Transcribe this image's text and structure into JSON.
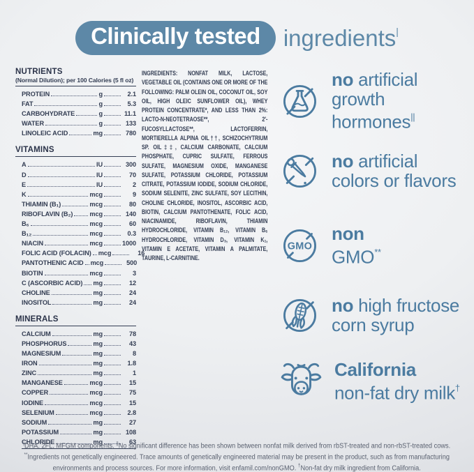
{
  "header": {
    "pill_text": "Clinically tested",
    "suffix_text": "ingredients",
    "suffix_sup": "|"
  },
  "nutrients": {
    "title": "NUTRIENTS",
    "subtitle": "(Normal Dilution); per 100 Calories (5 fl oz)",
    "rows": [
      {
        "label": "PROTEIN",
        "unit": "g",
        "value": "2.1"
      },
      {
        "label": "FAT",
        "unit": "g",
        "value": "5.3"
      },
      {
        "label": "CARBOHYDRATE",
        "unit": "g",
        "value": "11.1"
      },
      {
        "label": "WATER",
        "unit": "g",
        "value": "133"
      },
      {
        "label": "LINOLEIC ACID",
        "unit": "mg",
        "value": "780"
      }
    ]
  },
  "vitamins": {
    "title": "VITAMINS",
    "rows": [
      {
        "label": "A",
        "unit": "IU",
        "value": "300"
      },
      {
        "label": "D",
        "unit": "IU",
        "value": "70"
      },
      {
        "label": "E",
        "unit": "IU",
        "value": "2"
      },
      {
        "label": "K",
        "unit": "mcg",
        "value": "9"
      },
      {
        "label": "THIAMIN (B₁)",
        "unit": "mcg",
        "value": "80"
      },
      {
        "label": "RIBOFLAVIN (B₂)",
        "unit": "mcg",
        "value": "140"
      },
      {
        "label": "B₆",
        "unit": "mcg",
        "value": "60"
      },
      {
        "label": "B₁₂",
        "unit": "mcg",
        "value": "0.3"
      },
      {
        "label": "NIACIN",
        "unit": "mcg",
        "value": "1000"
      },
      {
        "label": "FOLIC ACID (FOLACIN)",
        "unit": "mcg",
        "value": "16"
      },
      {
        "label": "PANTOTHENIC ACID",
        "unit": "mcg",
        "value": "500"
      },
      {
        "label": "BIOTIN",
        "unit": "mcg",
        "value": "3"
      },
      {
        "label": "C (ASCORBIC ACID)",
        "unit": "mg",
        "value": "12"
      },
      {
        "label": "CHOLINE",
        "unit": "mg",
        "value": "24"
      },
      {
        "label": "INOSITOL",
        "unit": "mg",
        "value": "24"
      }
    ]
  },
  "minerals": {
    "title": "MINERALS",
    "rows": [
      {
        "label": "CALCIUM",
        "unit": "mg",
        "value": "78"
      },
      {
        "label": "PHOSPHORUS",
        "unit": "mg",
        "value": "43"
      },
      {
        "label": "MAGNESIUM",
        "unit": "mg",
        "value": "8"
      },
      {
        "label": "IRON",
        "unit": "mg",
        "value": "1.8"
      },
      {
        "label": "ZINC",
        "unit": "mg",
        "value": "1"
      },
      {
        "label": "MANGANESE",
        "unit": "mcg",
        "value": "15"
      },
      {
        "label": "COPPER",
        "unit": "mcg",
        "value": "75"
      },
      {
        "label": "IODINE",
        "unit": "mcg",
        "value": "15"
      },
      {
        "label": "SELENIUM",
        "unit": "mcg",
        "value": "2.8"
      },
      {
        "label": "SODIUM",
        "unit": "mg",
        "value": "27"
      },
      {
        "label": "POTASSIUM",
        "unit": "mg",
        "value": "108"
      },
      {
        "label": "CHLORIDE",
        "unit": "mg",
        "value": "63"
      }
    ]
  },
  "ingredients": {
    "label": "INGREDIENTS:",
    "text": "NONFAT MILK, LACTOSE, VEGETABLE OIL (CONTAINS ONE OR MORE OF THE FOLLOWING: PALM OLEIN OIL, COCONUT OIL, SOY OIL, HIGH OLEIC SUNFLOWER OIL), WHEY PROTEIN CONCENTRATE*, AND LESS THAN 2%: LACTO-N-NEOTETRAOSE**, 2'-FUCOSYLLACTOSE**, LACTOFERRIN, MORTIERELLA ALPINA OIL††, SCHIZOCHYTRIUM SP. OIL‡‡, CALCIUM CARBONATE, CALCIUM PHOSPHATE, CUPRIC SULFATE, FERROUS SULFATE, MAGNESIUM OXIDE, MANGANESE SULFATE, POTASSIUM CHLORIDE, POTASSIUM CITRATE, POTASSIUM IODIDE, SODIUM CHLORIDE, SODIUM SELENITE, ZINC SULFATE, SOY LECITHIN, CHOLINE CHLORIDE, INOSITOL, ASCORBIC ACID, BIOTIN, CALCIUM PANTOTHENATE, FOLIC ACID, NIACINAMIDE, RIBOFLAVIN, THIAMIN HYDROCHLORIDE, VITAMIN B₁₂, VITAMIN B₆ HYDROCHLORIDE, VITAMIN D₃, VITAMIN K₁, VITAMIN E ACETATE, VITAMIN A PALMITATE, TAURINE, L-CARNITINE."
  },
  "callouts": [
    {
      "icon": "no-artificial-growth-hormones-icon",
      "lines": [
        {
          "bold": "no",
          "text": "artificial"
        },
        {
          "text": "growth"
        },
        {
          "text": "hormones",
          "sup": "||"
        }
      ]
    },
    {
      "icon": "no-artificial-colors-flavors-icon",
      "lines": [
        {
          "bold": "no",
          "text": "artificial"
        },
        {
          "text": "colors or flavors"
        }
      ]
    },
    {
      "icon": "non-gmo-icon",
      "gmo_label": "GMO",
      "lines": [
        {
          "bold": "non"
        },
        {
          "text": "GMO",
          "sup": "**"
        }
      ]
    },
    {
      "icon": "no-high-fructose-corn-syrup-icon",
      "lines": [
        {
          "bold": "no",
          "text": "high fructose"
        },
        {
          "text": "corn syrup"
        }
      ]
    },
    {
      "icon": "cow-icon",
      "lines": [
        {
          "bold": "California"
        },
        {
          "text": "non-fat dry milk",
          "sup": "†"
        }
      ]
    }
  ],
  "footnote": {
    "lines": [
      [
        {
          "sup": "|"
        },
        {
          "text": "DHA, 2FL, MFGM components. "
        },
        {
          "sup": "||"
        },
        {
          "text": "No significant difference has been shown between nonfat milk derived from rbST-treated and non-rbST-treated cows."
        }
      ],
      [
        {
          "sup": "**"
        },
        {
          "text": "Ingredients not genetically engineered. Trace amounts of genetically engineered material may be present in the product, such as from manufacturing"
        }
      ],
      [
        {
          "text": "environments and process sources. For more information, visit enfamil.com/nonGMO. "
        },
        {
          "sup": "†"
        },
        {
          "text": "Non-fat dry milk ingredient from California."
        }
      ]
    ]
  },
  "colors": {
    "accent_blue": "#5d88a7",
    "callout_blue": "#4b7ba0",
    "table_navy": "#333d53",
    "footnote_gray": "#5a6170"
  }
}
